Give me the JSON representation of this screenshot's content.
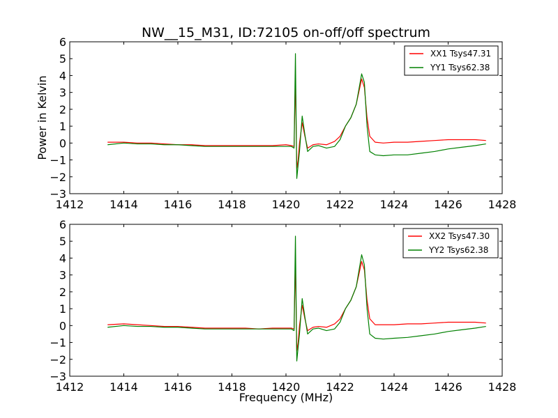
{
  "chart_data": [
    {
      "type": "line",
      "title": "NW__15_M31, ID:72105 on-off/off spectrum",
      "xlabel": "",
      "ylabel": "Power in Kelvin",
      "xlim": [
        1412,
        1428
      ],
      "ylim": [
        -3,
        6
      ],
      "xticks": [
        "1412",
        "1414",
        "1416",
        "1418",
        "1420",
        "1422",
        "1424",
        "1426",
        "1428"
      ],
      "yticks": [
        "−3",
        "−2",
        "−1",
        "0",
        "1",
        "2",
        "3",
        "4",
        "5",
        "6"
      ],
      "legend_position": "top-right",
      "grid": false,
      "series": [
        {
          "name": "XX1 Tsys47.31",
          "color": "#ff0000",
          "x": [
            1413.4,
            1414.0,
            1414.5,
            1415.0,
            1415.5,
            1416.0,
            1416.5,
            1417.0,
            1417.5,
            1418.0,
            1418.5,
            1419.0,
            1419.5,
            1420.0,
            1420.2,
            1420.3,
            1420.35,
            1420.4,
            1420.45,
            1420.5,
            1420.6,
            1420.7,
            1420.8,
            1421.0,
            1421.2,
            1421.5,
            1421.8,
            1422.0,
            1422.2,
            1422.4,
            1422.6,
            1422.8,
            1422.9,
            1423.0,
            1423.1,
            1423.3,
            1423.6,
            1424.0,
            1424.5,
            1425.0,
            1425.5,
            1426.0,
            1426.5,
            1427.0,
            1427.4
          ],
          "values": [
            0.05,
            0.05,
            0.0,
            0.0,
            -0.05,
            -0.1,
            -0.1,
            -0.15,
            -0.15,
            -0.15,
            -0.15,
            -0.15,
            -0.15,
            -0.1,
            -0.15,
            -0.2,
            3.9,
            -1.5,
            -1.0,
            0.0,
            1.2,
            0.4,
            -0.3,
            -0.1,
            -0.05,
            -0.1,
            0.1,
            0.4,
            1.0,
            1.5,
            2.3,
            3.8,
            3.3,
            1.5,
            0.4,
            0.05,
            0.0,
            0.05,
            0.05,
            0.1,
            0.15,
            0.2,
            0.2,
            0.2,
            0.15
          ]
        },
        {
          "name": "YY1 Tsys62.38",
          "color": "#008000",
          "x": [
            1413.4,
            1414.0,
            1414.5,
            1415.0,
            1415.5,
            1416.0,
            1416.5,
            1417.0,
            1417.5,
            1418.0,
            1418.5,
            1419.0,
            1419.5,
            1420.0,
            1420.2,
            1420.3,
            1420.35,
            1420.4,
            1420.45,
            1420.5,
            1420.6,
            1420.7,
            1420.8,
            1421.0,
            1421.2,
            1421.5,
            1421.8,
            1422.0,
            1422.2,
            1422.4,
            1422.6,
            1422.8,
            1422.9,
            1423.0,
            1423.1,
            1423.3,
            1423.6,
            1424.0,
            1424.5,
            1425.0,
            1425.5,
            1426.0,
            1426.5,
            1427.0,
            1427.4
          ],
          "values": [
            -0.1,
            0.0,
            -0.05,
            -0.05,
            -0.1,
            -0.1,
            -0.15,
            -0.2,
            -0.2,
            -0.2,
            -0.2,
            -0.2,
            -0.2,
            -0.2,
            -0.2,
            -0.3,
            5.3,
            -2.1,
            -1.3,
            -0.5,
            1.6,
            0.5,
            -0.5,
            -0.2,
            -0.15,
            -0.3,
            -0.2,
            0.2,
            1.0,
            1.5,
            2.3,
            4.1,
            3.6,
            1.0,
            -0.5,
            -0.7,
            -0.75,
            -0.7,
            -0.7,
            -0.6,
            -0.5,
            -0.35,
            -0.25,
            -0.15,
            -0.05
          ]
        }
      ]
    },
    {
      "type": "line",
      "title": "",
      "xlabel": "Frequency (MHz)",
      "ylabel": "",
      "xlim": [
        1412,
        1428
      ],
      "ylim": [
        -3,
        6
      ],
      "xticks": [
        "1412",
        "1414",
        "1416",
        "1418",
        "1420",
        "1422",
        "1424",
        "1426",
        "1428"
      ],
      "yticks": [
        "−3",
        "−2",
        "−1",
        "0",
        "1",
        "2",
        "3",
        "4",
        "5",
        "6"
      ],
      "legend_position": "top-right",
      "grid": false,
      "series": [
        {
          "name": "XX2 Tsys47.30",
          "color": "#ff0000",
          "x": [
            1413.4,
            1414.0,
            1414.5,
            1415.0,
            1415.5,
            1416.0,
            1416.5,
            1417.0,
            1417.5,
            1418.0,
            1418.5,
            1419.0,
            1419.5,
            1420.0,
            1420.2,
            1420.3,
            1420.35,
            1420.4,
            1420.45,
            1420.5,
            1420.6,
            1420.7,
            1420.8,
            1421.0,
            1421.2,
            1421.5,
            1421.8,
            1422.0,
            1422.2,
            1422.4,
            1422.6,
            1422.8,
            1422.9,
            1423.0,
            1423.1,
            1423.3,
            1423.6,
            1424.0,
            1424.5,
            1425.0,
            1425.5,
            1426.0,
            1426.5,
            1427.0,
            1427.4
          ],
          "values": [
            0.05,
            0.1,
            0.05,
            0.0,
            -0.05,
            -0.05,
            -0.1,
            -0.15,
            -0.15,
            -0.15,
            -0.15,
            -0.2,
            -0.15,
            -0.15,
            -0.15,
            -0.2,
            3.9,
            -1.5,
            -1.0,
            0.0,
            1.2,
            0.4,
            -0.3,
            -0.1,
            -0.05,
            -0.1,
            0.1,
            0.4,
            1.0,
            1.5,
            2.3,
            3.8,
            3.3,
            1.5,
            0.4,
            0.05,
            0.05,
            0.05,
            0.1,
            0.1,
            0.15,
            0.2,
            0.2,
            0.2,
            0.15
          ]
        },
        {
          "name": "YY2 Tsys62.38",
          "color": "#008000",
          "x": [
            1413.4,
            1414.0,
            1414.5,
            1415.0,
            1415.5,
            1416.0,
            1416.5,
            1417.0,
            1417.5,
            1418.0,
            1418.5,
            1419.0,
            1419.5,
            1420.0,
            1420.2,
            1420.3,
            1420.35,
            1420.4,
            1420.45,
            1420.5,
            1420.6,
            1420.7,
            1420.8,
            1421.0,
            1421.2,
            1421.5,
            1421.8,
            1422.0,
            1422.2,
            1422.4,
            1422.6,
            1422.8,
            1422.9,
            1423.0,
            1423.1,
            1423.3,
            1423.6,
            1424.0,
            1424.5,
            1425.0,
            1425.5,
            1426.0,
            1426.5,
            1427.0,
            1427.4
          ],
          "values": [
            -0.1,
            0.0,
            -0.05,
            -0.05,
            -0.1,
            -0.1,
            -0.15,
            -0.2,
            -0.2,
            -0.2,
            -0.2,
            -0.2,
            -0.2,
            -0.2,
            -0.2,
            -0.3,
            5.3,
            -2.1,
            -1.3,
            -0.5,
            1.6,
            0.5,
            -0.5,
            -0.2,
            -0.15,
            -0.3,
            -0.2,
            0.2,
            1.0,
            1.5,
            2.3,
            4.2,
            3.6,
            1.0,
            -0.5,
            -0.75,
            -0.8,
            -0.75,
            -0.7,
            -0.6,
            -0.5,
            -0.35,
            -0.25,
            -0.15,
            -0.05
          ]
        }
      ]
    }
  ]
}
